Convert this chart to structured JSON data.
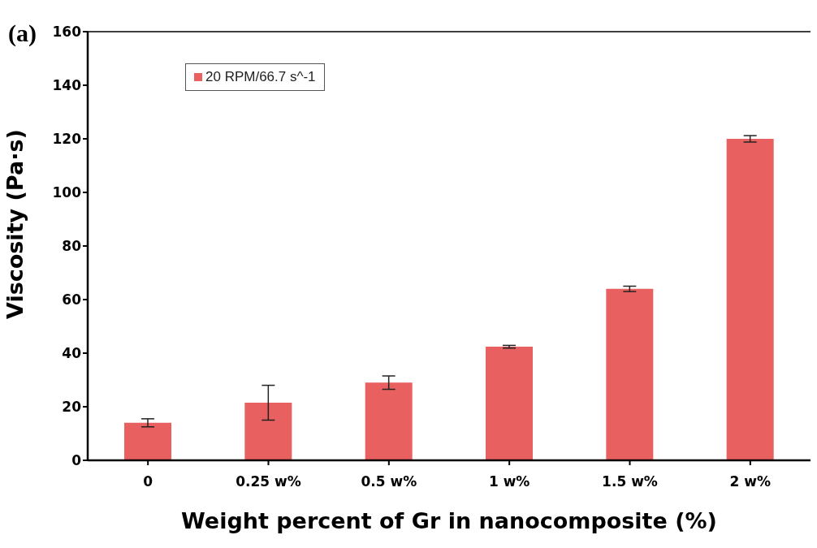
{
  "chart_data": {
    "type": "bar",
    "title": "(a)",
    "xlabel": "Weight percent of Gr in nanocomposite (%)",
    "ylabel": "Viscosity (Pa·s)",
    "categories": [
      "0",
      "0.25 w%",
      "0.5 w%",
      "1 w%",
      "1.5 w%",
      "2 w%"
    ],
    "series": [
      {
        "name": "20 RPM/66.7 s^-1",
        "color": "#e8605f",
        "values": [
          14,
          21.5,
          29,
          42.4,
          64,
          120
        ],
        "errors": [
          1.5,
          6.5,
          2.5,
          0.5,
          1,
          1.2
        ]
      }
    ],
    "ylim": [
      0,
      160
    ],
    "yticks": [
      0,
      20,
      40,
      60,
      80,
      100,
      120,
      140,
      160
    ],
    "grid": false,
    "legend": "top left"
  }
}
